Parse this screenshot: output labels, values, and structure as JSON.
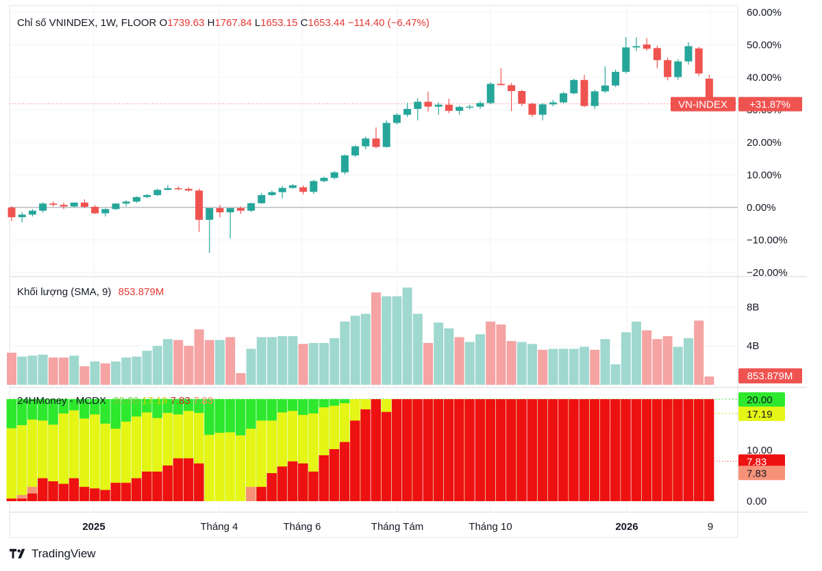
{
  "legend_main": {
    "prefix": "Chỉ số VNINDEX, 1W, FLOOR",
    "o_label": "O",
    "o_value": "1739.63",
    "h_label": "H",
    "h_value": "1767.84",
    "l_label": "L",
    "l_value": "1653.15",
    "c_label": "C",
    "c_value": "1653.44",
    "change": "−114.40 (−6.47%)"
  },
  "legend_volume": {
    "label": "Khối lượng (SMA, 9)",
    "value": "853.879M"
  },
  "legend_mcdx": {
    "label": "24HMoney - MCDX",
    "v1": "20.00",
    "v2": "17.19",
    "v3": "7.83",
    "v4": "7.83"
  },
  "badges": {
    "symbol": "VN-INDEX",
    "pct": "+31.87%",
    "volume": "853.879M",
    "mcdx": [
      "20.00",
      "17.19",
      "7.83",
      "7.83"
    ]
  },
  "colors": {
    "up": "#26a69a",
    "down": "#ef5350",
    "vol_up": "#9fd8cf",
    "vol_down": "#f5a3a3",
    "mcdx_green": "#2ee82e",
    "mcdx_yellow": "#e5f516",
    "mcdx_red": "#ee1111",
    "mcdx_salmon": "#f79279"
  },
  "footer": {
    "brand": "TradingView",
    "logo_icon": "tradingview-logo-icon"
  },
  "chart_data": [
    {
      "type": "candlestick",
      "title": "Chỉ số VNINDEX, 1W, FLOOR",
      "x_tick_labels": [
        "2025",
        "Tháng 4",
        "Tháng 6",
        "Tháng Tám",
        "Tháng 10",
        "2026",
        "9"
      ],
      "y_tick_labels": [
        "60.00%",
        "50.00%",
        "40.00%",
        "30.00%",
        "20.00%",
        "10.00%",
        "0.00%",
        "−10.00%",
        "−20.00%"
      ],
      "ylim": [
        -20,
        60
      ],
      "baseline": 0,
      "last_value_pct": 31.87,
      "series": [
        {
          "o": 0,
          "h": 0.4,
          "l": -4.2,
          "c": -3.0
        },
        {
          "o": -3.0,
          "h": -1.4,
          "l": -4.6,
          "c": -2.2
        },
        {
          "o": -2.2,
          "h": -0.5,
          "l": -2.8,
          "c": -1.0
        },
        {
          "o": -1.0,
          "h": 1.6,
          "l": -1.6,
          "c": 1.2
        },
        {
          "o": 1.2,
          "h": 1.9,
          "l": 0.3,
          "c": 0.8
        },
        {
          "o": 0.8,
          "h": 1.5,
          "l": -0.5,
          "c": 0.3
        },
        {
          "o": 0.3,
          "h": 1.5,
          "l": 0.0,
          "c": 1.5
        },
        {
          "o": 1.5,
          "h": 2.5,
          "l": -0.2,
          "c": 0.2
        },
        {
          "o": 0.2,
          "h": 0.7,
          "l": -2.0,
          "c": -1.8
        },
        {
          "o": -1.8,
          "h": -0.3,
          "l": -2.8,
          "c": -0.5
        },
        {
          "o": -0.5,
          "h": 1.3,
          "l": -0.8,
          "c": 1.2
        },
        {
          "o": 1.2,
          "h": 2.2,
          "l": 0.3,
          "c": 1.8
        },
        {
          "o": 1.8,
          "h": 3.4,
          "l": 1.4,
          "c": 3.2
        },
        {
          "o": 3.2,
          "h": 4.2,
          "l": 2.8,
          "c": 3.8
        },
        {
          "o": 3.8,
          "h": 5.8,
          "l": 3.5,
          "c": 5.4
        },
        {
          "o": 5.4,
          "h": 6.9,
          "l": 5.3,
          "c": 5.9
        },
        {
          "o": 5.9,
          "h": 6.5,
          "l": 5.3,
          "c": 5.7
        },
        {
          "o": 5.7,
          "h": 6.2,
          "l": 4.9,
          "c": 5.2
        },
        {
          "o": 5.2,
          "h": 5.8,
          "l": -7.5,
          "c": -3.8
        },
        {
          "o": -3.8,
          "h": -0.5,
          "l": -14.0,
          "c": -0.2
        },
        {
          "o": -0.2,
          "h": 0.8,
          "l": -3.0,
          "c": -1.5
        },
        {
          "o": -1.5,
          "h": -0.2,
          "l": -9.5,
          "c": -0.2
        },
        {
          "o": -0.2,
          "h": 0.3,
          "l": -2.0,
          "c": -1.0
        },
        {
          "o": -1.0,
          "h": 1.5,
          "l": -1.4,
          "c": 1.3
        },
        {
          "o": 1.3,
          "h": 4.5,
          "l": 1.1,
          "c": 3.8
        },
        {
          "o": 3.8,
          "h": 5.2,
          "l": 3.5,
          "c": 4.7
        },
        {
          "o": 4.7,
          "h": 6.6,
          "l": 2.8,
          "c": 6.0
        },
        {
          "o": 6.0,
          "h": 7.2,
          "l": 5.8,
          "c": 6.8
        },
        {
          "o": 6.2,
          "h": 6.8,
          "l": 4.0,
          "c": 4.8
        },
        {
          "o": 4.8,
          "h": 8.5,
          "l": 4.2,
          "c": 8.1
        },
        {
          "o": 8.1,
          "h": 9.5,
          "l": 7.8,
          "c": 9.1
        },
        {
          "o": 9.1,
          "h": 11.2,
          "l": 8.6,
          "c": 10.8
        },
        {
          "o": 10.8,
          "h": 16.3,
          "l": 10.2,
          "c": 16.0
        },
        {
          "o": 16.0,
          "h": 19.2,
          "l": 15.5,
          "c": 18.8
        },
        {
          "o": 18.8,
          "h": 21.8,
          "l": 17.9,
          "c": 21.2
        },
        {
          "o": 21.2,
          "h": 24.6,
          "l": 18.2,
          "c": 18.6
        },
        {
          "o": 18.6,
          "h": 26.8,
          "l": 18.4,
          "c": 26.0
        },
        {
          "o": 26.0,
          "h": 29.0,
          "l": 25.5,
          "c": 28.5
        },
        {
          "o": 28.5,
          "h": 32.2,
          "l": 27.8,
          "c": 30.3
        },
        {
          "o": 30.3,
          "h": 33.6,
          "l": 26.8,
          "c": 32.5
        },
        {
          "o": 32.5,
          "h": 35.6,
          "l": 29.5,
          "c": 31.0
        },
        {
          "o": 31.0,
          "h": 32.3,
          "l": 28.5,
          "c": 31.6
        },
        {
          "o": 31.6,
          "h": 33.5,
          "l": 29.0,
          "c": 29.7
        },
        {
          "o": 29.7,
          "h": 31.3,
          "l": 28.5,
          "c": 30.9
        },
        {
          "o": 30.9,
          "h": 31.6,
          "l": 30.2,
          "c": 31.0
        },
        {
          "o": 31.0,
          "h": 32.7,
          "l": 30.3,
          "c": 32.1
        },
        {
          "o": 32.1,
          "h": 38.5,
          "l": 31.8,
          "c": 38.0
        },
        {
          "o": 38.0,
          "h": 42.8,
          "l": 37.6,
          "c": 37.6
        },
        {
          "o": 37.6,
          "h": 38.3,
          "l": 29.6,
          "c": 35.8
        },
        {
          "o": 35.8,
          "h": 36.1,
          "l": 31.2,
          "c": 31.9
        },
        {
          "o": 31.9,
          "h": 32.2,
          "l": 27.9,
          "c": 28.5
        },
        {
          "o": 28.5,
          "h": 32.1,
          "l": 26.8,
          "c": 31.7
        },
        {
          "o": 31.7,
          "h": 33.1,
          "l": 31.1,
          "c": 32.3
        },
        {
          "o": 32.3,
          "h": 35.6,
          "l": 32.0,
          "c": 35.1
        },
        {
          "o": 35.1,
          "h": 39.6,
          "l": 34.8,
          "c": 39.2
        },
        {
          "o": 39.2,
          "h": 40.8,
          "l": 30.8,
          "c": 31.2
        },
        {
          "o": 31.2,
          "h": 36.2,
          "l": 30.3,
          "c": 35.7
        },
        {
          "o": 35.7,
          "h": 43.4,
          "l": 35.2,
          "c": 37.5
        },
        {
          "o": 37.5,
          "h": 42.4,
          "l": 37.0,
          "c": 41.7
        },
        {
          "o": 41.7,
          "h": 52.4,
          "l": 41.2,
          "c": 49.2
        },
        {
          "o": 49.2,
          "h": 52.3,
          "l": 48.1,
          "c": 49.6
        },
        {
          "o": 50.1,
          "h": 52.1,
          "l": 48.2,
          "c": 48.8
        },
        {
          "o": 49.0,
          "h": 49.7,
          "l": 42.8,
          "c": 45.3
        },
        {
          "o": 45.3,
          "h": 46.1,
          "l": 39.1,
          "c": 40.1
        },
        {
          "o": 40.1,
          "h": 45.6,
          "l": 39.3,
          "c": 44.9
        },
        {
          "o": 44.9,
          "h": 50.8,
          "l": 43.9,
          "c": 49.6
        },
        {
          "o": 48.9,
          "h": 49.4,
          "l": 40.4,
          "c": 41.2
        },
        {
          "o": 39.6,
          "h": 40.8,
          "l": 31.7,
          "c": 31.87
        }
      ]
    },
    {
      "type": "bar",
      "title": "Khối lượng (SMA, 9)",
      "y_tick_labels": [
        "8B",
        "4B"
      ],
      "ylim": [
        0,
        10
      ],
      "last_value": "853.879M",
      "values": [
        3.3,
        2.9,
        3.0,
        3.1,
        2.8,
        2.8,
        3.0,
        1.9,
        2.4,
        2.2,
        2.4,
        2.8,
        2.9,
        3.5,
        4.0,
        4.7,
        4.6,
        4.0,
        5.7,
        4.6,
        4.6,
        4.9,
        1.2,
        3.7,
        4.9,
        4.9,
        5.0,
        5.0,
        4.2,
        4.3,
        4.3,
        4.8,
        6.5,
        7.1,
        7.3,
        9.5,
        9.1,
        9.1,
        10.0,
        7.3,
        4.3,
        6.4,
        5.8,
        4.9,
        4.4,
        5.2,
        6.5,
        6.2,
        4.5,
        4.4,
        4.2,
        3.6,
        3.7,
        3.7,
        3.7,
        3.9,
        3.6,
        4.7,
        2.1,
        5.4,
        6.5,
        5.6,
        4.7,
        5.0,
        3.9,
        4.8,
        6.6,
        0.85
      ],
      "up": [
        false,
        true,
        true,
        true,
        false,
        false,
        true,
        false,
        true,
        false,
        true,
        true,
        true,
        true,
        true,
        true,
        false,
        false,
        false,
        false,
        true,
        false,
        false,
        true,
        true,
        true,
        true,
        true,
        false,
        true,
        true,
        true,
        true,
        true,
        true,
        false,
        true,
        true,
        true,
        true,
        false,
        true,
        true,
        false,
        true,
        true,
        false,
        false,
        false,
        true,
        true,
        false,
        true,
        true,
        true,
        true,
        false,
        true,
        true,
        true,
        true,
        false,
        false,
        false,
        true,
        true,
        false,
        false
      ]
    },
    {
      "type": "bar",
      "title": "24HMoney - MCDX",
      "y_tick_labels": [
        "20.00",
        "10.00",
        "0.00"
      ],
      "ylim": [
        0,
        20
      ],
      "stack_order": [
        "red",
        "yellow",
        "green"
      ],
      "red": [
        0.5,
        0.5,
        1.5,
        4.5,
        3.9,
        3.4,
        4.5,
        2.8,
        2.5,
        2.2,
        3.6,
        3.6,
        4.5,
        5.8,
        5.8,
        7.0,
        8.4,
        8.4,
        7.4,
        0.0,
        0.0,
        0.0,
        0.0,
        0.0,
        2.8,
        5.5,
        6.8,
        7.8,
        7.4,
        5.8,
        9.0,
        10.2,
        11.6,
        15.8,
        18.0,
        20.0,
        17.5,
        20.0,
        20.0,
        20.0,
        20.0,
        20.0,
        20.0,
        20.0,
        20.0,
        20.0,
        20.0,
        20.0,
        20.0,
        20.0,
        20.0,
        20.0,
        20.0,
        20.0,
        20.0,
        20.0,
        20.0,
        20.0,
        20.0,
        20.0,
        20.0,
        20.0,
        20.0,
        20.0,
        20.0,
        20.0,
        20.0,
        20.0,
        7.83
      ],
      "salmon": [
        0,
        1.2,
        2.8,
        0,
        0,
        0,
        3.0,
        0,
        0,
        0,
        2.3,
        0,
        0,
        0,
        0,
        0,
        0,
        0,
        0,
        0,
        0,
        0,
        0,
        2.8,
        0,
        0,
        0,
        0,
        0,
        0,
        0,
        0,
        0,
        0,
        0,
        0,
        0,
        0,
        0,
        0,
        0,
        0,
        0,
        0,
        0,
        0,
        0,
        0,
        0,
        0,
        0,
        0,
        18.0,
        14.8,
        16.6,
        17.3,
        0,
        0,
        14.5,
        17.3,
        0,
        0,
        0,
        0,
        0,
        0,
        15.8,
        13.8,
        0
      ],
      "yellow": [
        14.3,
        14.9,
        16.0,
        15.8,
        15.0,
        17.2,
        17.8,
        16.2,
        17.0,
        15.2,
        14.2,
        15.6,
        16.6,
        17.4,
        16.3,
        17.3,
        17.0,
        17.7,
        17.3,
        13.0,
        13.4,
        13.5,
        12.9,
        14.2,
        15.8,
        15.8,
        17.4,
        17.7,
        16.9,
        17.2,
        18.4,
        18.7,
        19.2,
        20.0,
        20.0,
        20.0,
        20.0,
        20.0,
        20.0,
        20.0,
        20.0,
        20.0,
        20.0,
        20.0,
        20.0,
        20.0,
        20.0,
        20.0,
        20.0,
        20.0,
        20.0,
        20.0,
        20.0,
        20.0,
        20.0,
        20.0,
        20.0,
        20.0,
        20.0,
        20.0,
        20.0,
        20.0,
        20.0,
        20.0,
        20.0,
        20.0,
        20.0,
        20.0,
        17.19
      ],
      "green": 20.0
    }
  ]
}
